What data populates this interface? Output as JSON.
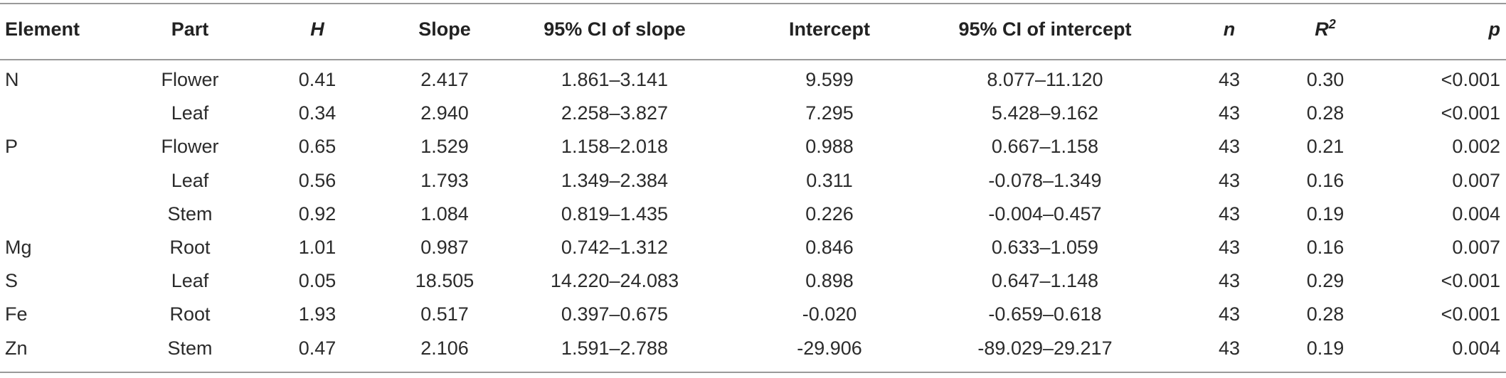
{
  "table": {
    "header": [
      {
        "text": "Element"
      },
      {
        "text": "Part"
      },
      {
        "text": "H",
        "italic": true
      },
      {
        "text": "Slope"
      },
      {
        "text": "95% CI of slope"
      },
      {
        "text": "Intercept"
      },
      {
        "text": "95% CI of intercept"
      },
      {
        "text": "n",
        "italic": true
      },
      {
        "text": "R",
        "sup": "2",
        "italic": true
      },
      {
        "text": "p",
        "italic": true
      }
    ],
    "rows": [
      [
        "N",
        "Flower",
        "0.41",
        "2.417",
        "1.861–3.141",
        "9.599",
        "8.077–11.120",
        "43",
        "0.30",
        "<0.001"
      ],
      [
        null,
        "Leaf",
        "0.34",
        "2.940",
        "2.258–3.827",
        "7.295",
        "5.428–9.162",
        "43",
        "0.28",
        "<0.001"
      ],
      [
        "P",
        "Flower",
        "0.65",
        "1.529",
        "1.158–2.018",
        "0.988",
        "0.667–1.158",
        "43",
        "0.21",
        "0.002"
      ],
      [
        null,
        "Leaf",
        "0.56",
        "1.793",
        "1.349–2.384",
        "0.311",
        "-0.078–1.349",
        "43",
        "0.16",
        "0.007"
      ],
      [
        null,
        "Stem",
        "0.92",
        "1.084",
        "0.819–1.435",
        "0.226",
        "-0.004–0.457",
        "43",
        "0.19",
        "0.004"
      ],
      [
        "Mg",
        "Root",
        "1.01",
        "0.987",
        "0.742–1.312",
        "0.846",
        "0.633–1.059",
        "43",
        "0.16",
        "0.007"
      ],
      [
        "S",
        "Leaf",
        "0.05",
        "18.505",
        "14.220–24.083",
        "0.898",
        "0.647–1.148",
        "43",
        "0.29",
        "<0.001"
      ],
      [
        "Fe",
        "Root",
        "1.93",
        "0.517",
        "0.397–0.675",
        "-0.020",
        "-0.659–0.618",
        "43",
        "0.28",
        "<0.001"
      ],
      [
        "Zn",
        "Stem",
        "0.47",
        "2.106",
        "1.591–2.788",
        "-29.906",
        "-89.029–29.217",
        "43",
        "0.19",
        "0.004"
      ]
    ]
  }
}
